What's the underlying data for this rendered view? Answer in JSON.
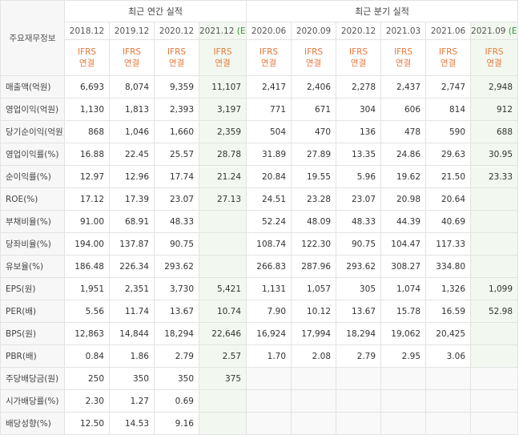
{
  "table": {
    "row_header_title": "주요재무정보",
    "annual_title": "최근 연간 실적",
    "quarterly_title": "최근 분기 실적",
    "annual_periods": [
      {
        "label": "2018.12",
        "suffix": ""
      },
      {
        "label": "2019.12",
        "suffix": ""
      },
      {
        "label": "2020.12",
        "suffix": ""
      },
      {
        "label": "2021.12",
        "suffix": "(E)"
      }
    ],
    "quarterly_periods": [
      {
        "label": "2020.06",
        "suffix": ""
      },
      {
        "label": "2020.09",
        "suffix": ""
      },
      {
        "label": "2020.12",
        "suffix": ""
      },
      {
        "label": "2021.03",
        "suffix": ""
      },
      {
        "label": "2021.06",
        "suffix": ""
      },
      {
        "label": "2021.09",
        "suffix": "(E)"
      }
    ],
    "ifrs_top": "IFRS",
    "ifrs_bottom": "연결",
    "rows": [
      {
        "label": "매출액(억원)",
        "values": [
          "6,693",
          "8,074",
          "9,359",
          "11,107",
          "2,417",
          "2,406",
          "2,278",
          "2,437",
          "2,747",
          "2,948"
        ]
      },
      {
        "label": "영업이익(억원)",
        "values": [
          "1,130",
          "1,813",
          "2,393",
          "3,197",
          "771",
          "671",
          "304",
          "606",
          "814",
          "912"
        ]
      },
      {
        "label": "당기순이익(억원)",
        "values": [
          "868",
          "1,046",
          "1,660",
          "2,359",
          "504",
          "470",
          "136",
          "478",
          "590",
          "688"
        ]
      },
      {
        "label": "영업이익률(%)",
        "values": [
          "16.88",
          "22.45",
          "25.57",
          "28.78",
          "31.89",
          "27.89",
          "13.35",
          "24.86",
          "29.63",
          "30.95"
        ]
      },
      {
        "label": "순이익률(%)",
        "values": [
          "12.97",
          "12.96",
          "17.74",
          "21.24",
          "20.84",
          "19.55",
          "5.96",
          "19.62",
          "21.50",
          "23.33"
        ]
      },
      {
        "label": "ROE(%)",
        "values": [
          "17.12",
          "17.39",
          "23.07",
          "27.13",
          "24.51",
          "23.28",
          "23.07",
          "20.98",
          "20.64",
          ""
        ]
      },
      {
        "label": "부채비율(%)",
        "values": [
          "91.00",
          "68.91",
          "48.33",
          "",
          "52.24",
          "48.09",
          "48.33",
          "44.39",
          "40.69",
          ""
        ]
      },
      {
        "label": "당좌비율(%)",
        "values": [
          "194.00",
          "137.87",
          "90.75",
          "",
          "108.74",
          "122.30",
          "90.75",
          "104.47",
          "117.33",
          ""
        ]
      },
      {
        "label": "유보율(%)",
        "values": [
          "186.48",
          "226.34",
          "293.62",
          "",
          "266.83",
          "287.96",
          "293.62",
          "308.27",
          "334.80",
          ""
        ]
      },
      {
        "label": "EPS(원)",
        "values": [
          "1,951",
          "2,351",
          "3,730",
          "5,421",
          "1,131",
          "1,057",
          "305",
          "1,074",
          "1,326",
          "1,099"
        ]
      },
      {
        "label": "PER(배)",
        "values": [
          "5.56",
          "11.74",
          "13.67",
          "10.74",
          "7.90",
          "10.12",
          "13.67",
          "15.78",
          "16.59",
          "52.98"
        ]
      },
      {
        "label": "BPS(원)",
        "values": [
          "12,863",
          "14,844",
          "18,294",
          "22,646",
          "16,924",
          "17,994",
          "18,294",
          "19,062",
          "20,425",
          ""
        ]
      },
      {
        "label": "PBR(배)",
        "values": [
          "0.84",
          "1.86",
          "2.79",
          "2.57",
          "1.70",
          "2.08",
          "2.79",
          "2.95",
          "3.06",
          ""
        ]
      },
      {
        "label": "주당배당금(원)",
        "values": [
          "250",
          "350",
          "350",
          "375",
          "",
          "",
          "",
          "",
          "",
          ""
        ]
      },
      {
        "label": "시가배당률(%)",
        "values": [
          "2.30",
          "1.27",
          "0.69",
          "",
          "",
          "",
          "",
          "",
          "",
          ""
        ]
      },
      {
        "label": "배당성향(%)",
        "values": [
          "12.50",
          "14.53",
          "9.16",
          "",
          "",
          "",
          "",
          "",
          "",
          ""
        ]
      }
    ]
  }
}
